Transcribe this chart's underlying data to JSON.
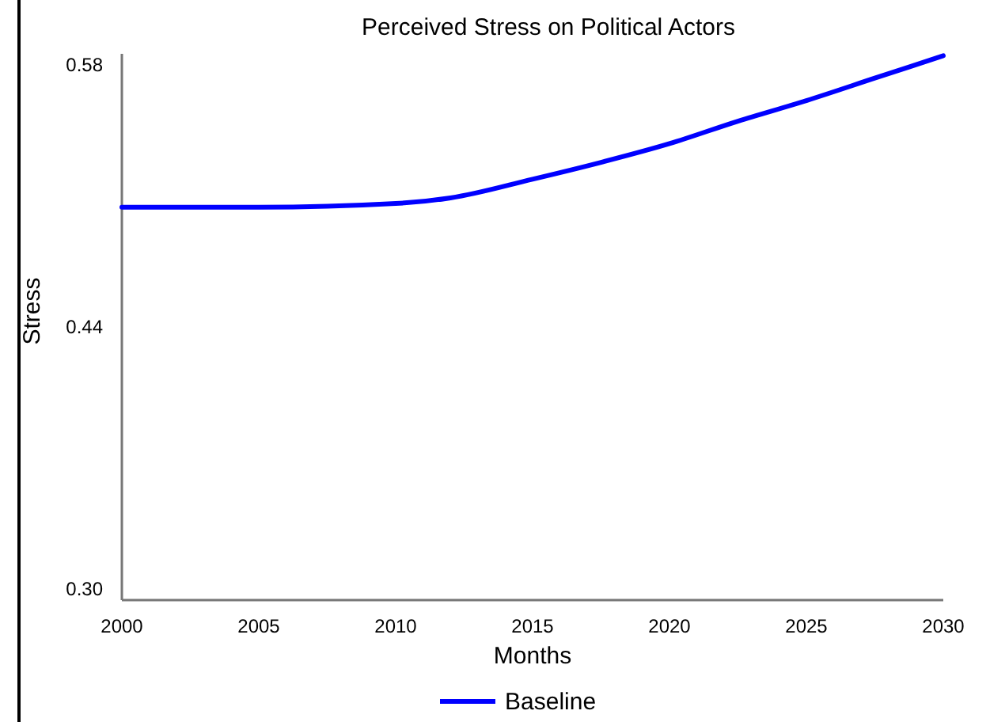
{
  "chart_data": {
    "type": "line",
    "title": "Perceived Stress on Political Actors",
    "xlabel": "Months",
    "ylabel": "Stress",
    "x": [
      2000,
      2005,
      2010,
      2012,
      2015,
      2017.5,
      2020,
      2022.5,
      2025,
      2027.5,
      2030
    ],
    "series": [
      {
        "name": "Baseline",
        "color": "#0000ff",
        "values": [
          0.504,
          0.504,
          0.506,
          0.509,
          0.519,
          0.528,
          0.538,
          0.55,
          0.561,
          0.573,
          0.585
        ]
      }
    ],
    "xlim": [
      2000,
      2030
    ],
    "xticks": [
      2000,
      2005,
      2010,
      2015,
      2020,
      2025,
      2030
    ],
    "ylim": [
      0.294,
      0.586
    ],
    "yticks": [
      {
        "value": 0.3,
        "label": "0.30"
      },
      {
        "value": 0.44,
        "label": "0.44"
      },
      {
        "value": 0.58,
        "label": "0.58"
      }
    ],
    "grid": false,
    "legend": "bottom",
    "marker": "none",
    "line_style": "solid"
  }
}
